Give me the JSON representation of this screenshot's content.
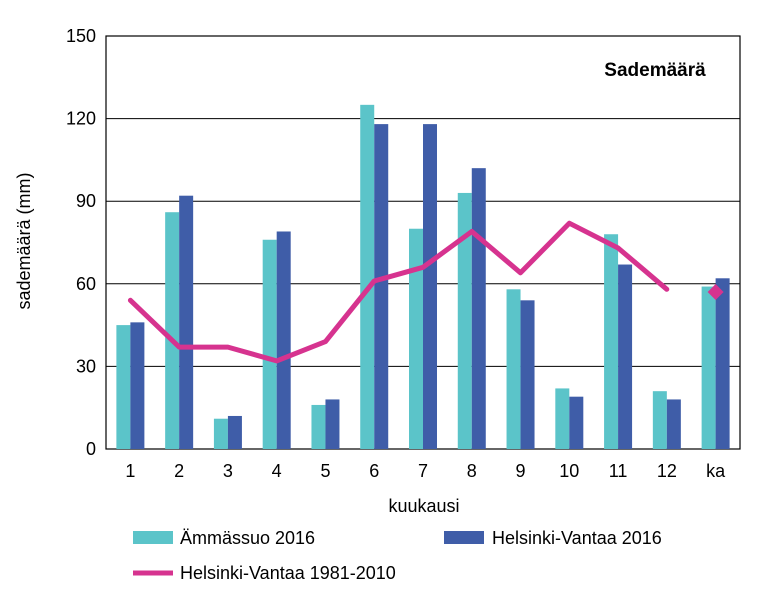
{
  "chart_data": {
    "type": "bar",
    "title": "Sademäärä",
    "xlabel": "kuukausi",
    "ylabel": "sademäärä (mm)",
    "categories": [
      "1",
      "2",
      "3",
      "4",
      "5",
      "6",
      "7",
      "8",
      "9",
      "10",
      "11",
      "12",
      "ka"
    ],
    "ylim": [
      0,
      150
    ],
    "yticks": [
      0,
      30,
      60,
      90,
      120,
      150
    ],
    "grid": true,
    "legend_position": "bottom",
    "series": [
      {
        "name": "Ämmässuo 2016",
        "type": "bar",
        "color": "#5BC4C9",
        "values": [
          45,
          86,
          11,
          76,
          16,
          125,
          80,
          93,
          58,
          22,
          78,
          21,
          59
        ]
      },
      {
        "name": "Helsinki-Vantaa 2016",
        "type": "bar",
        "color": "#3F5DA8",
        "values": [
          46,
          92,
          12,
          79,
          18,
          118,
          118,
          102,
          54,
          19,
          67,
          18,
          62
        ]
      },
      {
        "name": "Helsinki-Vantaa 1981-2010",
        "type": "line",
        "color": "#D6338F",
        "values": [
          54,
          37,
          37,
          32,
          39,
          61,
          66,
          79,
          64,
          82,
          73,
          58,
          null
        ],
        "marker_value": 57,
        "marker_category": "ka"
      }
    ]
  }
}
